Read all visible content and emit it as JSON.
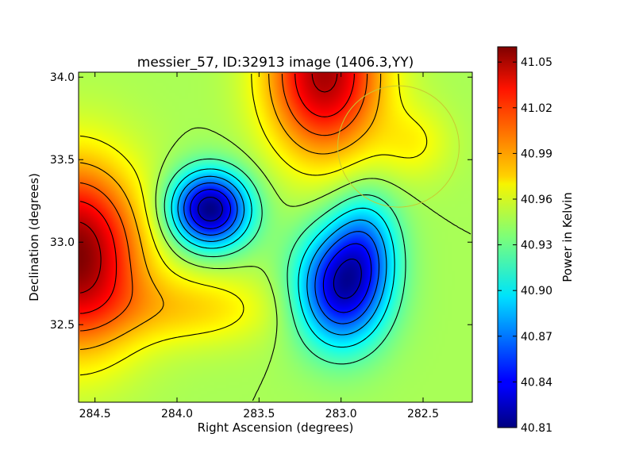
{
  "chart_data": {
    "type": "heatmap",
    "title": "messier_57, ID:32913 image (1406.3,YY)",
    "xlabel": "Right Ascension (degrees)",
    "ylabel": "Declination (degrees)",
    "xlim": [
      284.6,
      282.2
    ],
    "ylim": [
      32.03,
      34.03
    ],
    "x_ticks": [
      284.5,
      284.0,
      283.5,
      283.0,
      282.5
    ],
    "x_tick_labels": [
      "284.5",
      "284.0",
      "283.5",
      "283.0",
      "282.5"
    ],
    "y_ticks": [
      32.5,
      33.0,
      33.5,
      34.0
    ],
    "y_tick_labels": [
      "32.5",
      "33.0",
      "33.5",
      "34.0"
    ],
    "colorbar": {
      "label": "Power in Kelvin",
      "range": [
        40.81,
        41.06
      ],
      "ticks": [
        40.81,
        40.84,
        40.87,
        40.9,
        40.93,
        40.96,
        40.99,
        41.02,
        41.05
      ],
      "tick_labels": [
        "40.81",
        "40.84",
        "40.87",
        "40.90",
        "40.93",
        "40.96",
        "40.99",
        "41.02",
        "41.05"
      ],
      "colormap": "jet"
    },
    "features": [
      {
        "kind": "maximum",
        "ra": 284.62,
        "dec": 32.92,
        "value": 41.06
      },
      {
        "kind": "maximum",
        "ra": 283.1,
        "dec": 34.02,
        "value": 41.05
      },
      {
        "kind": "minimum",
        "ra": 283.8,
        "dec": 33.2,
        "value": 40.81
      },
      {
        "kind": "minimum",
        "ra": 283.02,
        "dec": 32.7,
        "value": 40.83
      }
    ],
    "beam_circle": {
      "ra": 282.65,
      "dec": 33.58,
      "radius_deg": 0.37,
      "color": "#c8c832"
    },
    "grid": false,
    "contours": true
  }
}
